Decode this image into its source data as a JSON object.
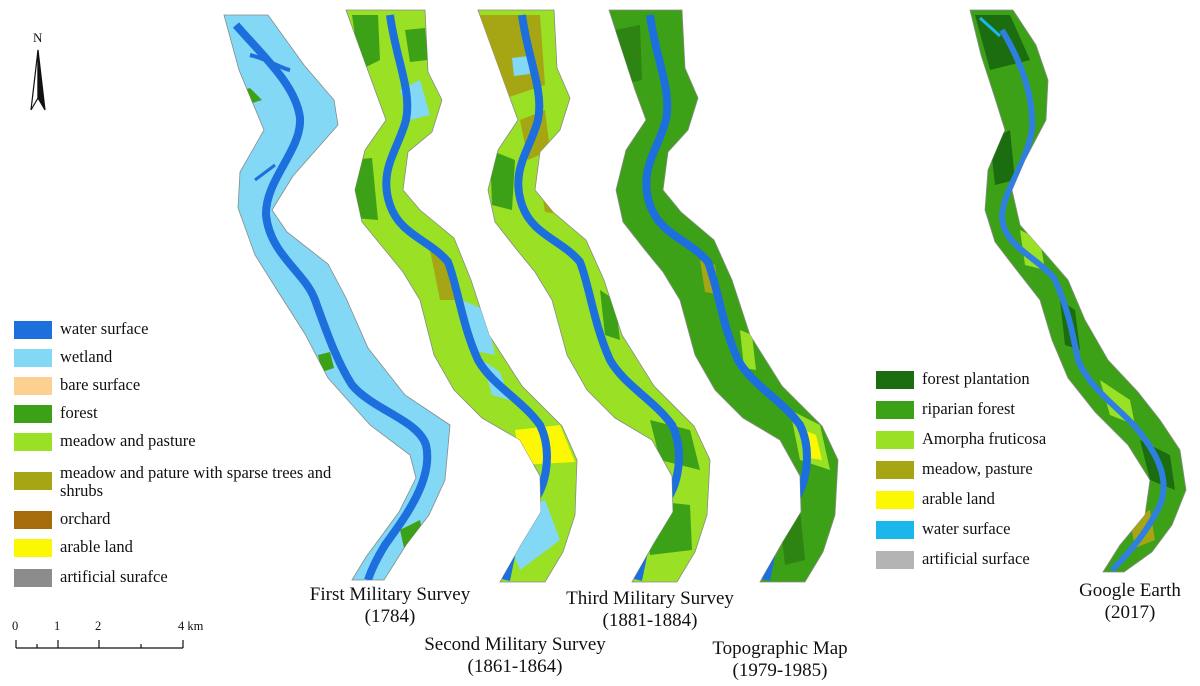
{
  "north_label": "N",
  "scale": {
    "ticks": [
      "0",
      "1",
      "2",
      "4 km"
    ]
  },
  "legend_historical": [
    {
      "label": "water surface",
      "color": "#1c6fdc"
    },
    {
      "label": "wetland",
      "color": "#82d8f5"
    },
    {
      "label": "bare surface",
      "color": "#fcd090"
    },
    {
      "label": "forest",
      "color": "#3ca116"
    },
    {
      "label": "meadow and pasture",
      "color": "#9ae025"
    },
    {
      "label": "meadow and pature with sparse trees and shrubs",
      "color": "#a6a514"
    },
    {
      "label": "orchard",
      "color": "#a66c0c"
    },
    {
      "label": "arable land",
      "color": "#fcf804"
    },
    {
      "label": "artificial surafce",
      "color": "#8c8c8c"
    }
  ],
  "legend_modern": [
    {
      "label": "forest plantation",
      "color": "#1c6d10"
    },
    {
      "label": "riparian forest",
      "color": "#3ca116"
    },
    {
      "label": "Amorpha fruticosa",
      "color": "#9ae025"
    },
    {
      "label": "meadow, pasture",
      "color": "#a6a514"
    },
    {
      "label": "arable land",
      "color": "#fcf804"
    },
    {
      "label": "water surface",
      "color": "#1ab6ec"
    },
    {
      "label": "artificial surface",
      "color": "#b4b4b4"
    }
  ],
  "maps": [
    {
      "title": "First Military Survey",
      "period": "(1784)"
    },
    {
      "title": "Second Military Survey",
      "period": "(1861-1864)"
    },
    {
      "title": "Third Military Survey",
      "period": "(1881-1884)"
    },
    {
      "title": "Topographic Map",
      "period": "(1979-1985)"
    },
    {
      "title": "Google Earth",
      "period": "(2017)"
    }
  ]
}
